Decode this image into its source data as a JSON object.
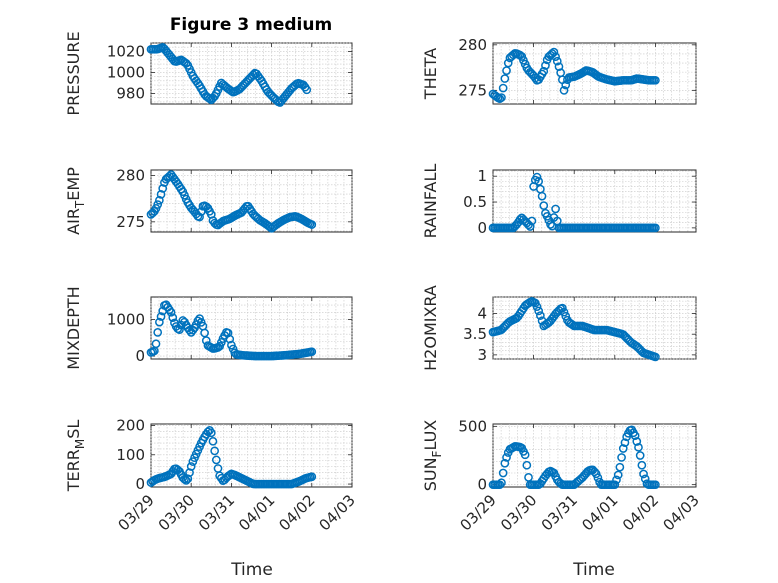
{
  "figure": {
    "title": "Figure 3 medium",
    "xlabel": "Time"
  },
  "colors": {
    "marker": "#0072bd",
    "grid": "#c8c8c8",
    "axis": "#262626"
  },
  "chart_data": [
    {
      "type": "scatter",
      "id": "pressure",
      "ylabel_main": "PRESSURE",
      "ylabel_sub": "",
      "ylabel_tail": "",
      "ylim": [
        970,
        1028
      ],
      "yticks": [
        980,
        1000,
        1020
      ],
      "yticklabels": [
        "980",
        "1000",
        "1020"
      ],
      "xlim": [
        0,
        5
      ],
      "xticklabels": [
        "03/29",
        "03/30",
        "03/31",
        "04/01",
        "04/02",
        "04/03"
      ],
      "curve": [
        [
          0.0,
          1022
        ],
        [
          0.15,
          1022
        ],
        [
          0.3,
          1024
        ],
        [
          0.45,
          1017
        ],
        [
          0.6,
          1010
        ],
        [
          0.75,
          1012
        ],
        [
          0.9,
          1008
        ],
        [
          1.05,
          996
        ],
        [
          1.2,
          988
        ],
        [
          1.35,
          978
        ],
        [
          1.5,
          974
        ],
        [
          1.6,
          978
        ],
        [
          1.75,
          990
        ],
        [
          1.9,
          985
        ],
        [
          2.05,
          981
        ],
        [
          2.2,
          984
        ],
        [
          2.35,
          990
        ],
        [
          2.5,
          996
        ],
        [
          2.6,
          1000
        ],
        [
          2.75,
          992
        ],
        [
          2.9,
          982
        ],
        [
          3.05,
          976
        ],
        [
          3.2,
          971
        ],
        [
          3.35,
          978
        ],
        [
          3.5,
          985
        ],
        [
          3.65,
          990
        ],
        [
          3.8,
          988
        ],
        [
          3.9,
          982
        ]
      ]
    },
    {
      "type": "scatter",
      "id": "theta",
      "ylabel_main": "THETA",
      "ylabel_sub": "",
      "ylabel_tail": "",
      "ylim": [
        273.5,
        280.2
      ],
      "yticks": [
        275,
        280
      ],
      "yticklabels": [
        "275",
        "280"
      ],
      "xlim": [
        0,
        5
      ],
      "xticklabels": [
        "03/29",
        "03/30",
        "03/31",
        "04/01",
        "04/02",
        "04/03"
      ],
      "curve": [
        [
          0.0,
          274.6
        ],
        [
          0.12,
          274.2
        ],
        [
          0.2,
          274.0
        ],
        [
          0.3,
          276.5
        ],
        [
          0.4,
          278.5
        ],
        [
          0.55,
          279.1
        ],
        [
          0.7,
          278.8
        ],
        [
          0.85,
          277.3
        ],
        [
          1.0,
          276.6
        ],
        [
          1.1,
          276.0
        ],
        [
          1.25,
          277.1
        ],
        [
          1.35,
          278.6
        ],
        [
          1.5,
          279.2
        ],
        [
          1.6,
          278.0
        ],
        [
          1.7,
          276.4
        ],
        [
          1.75,
          275.0
        ],
        [
          1.85,
          276.4
        ],
        [
          2.0,
          276.5
        ],
        [
          2.15,
          276.8
        ],
        [
          2.3,
          277.2
        ],
        [
          2.45,
          277.0
        ],
        [
          2.6,
          276.5
        ],
        [
          2.8,
          276.2
        ],
        [
          3.0,
          276.0
        ],
        [
          3.2,
          276.1
        ],
        [
          3.4,
          276.1
        ],
        [
          3.55,
          276.3
        ],
        [
          3.7,
          276.2
        ],
        [
          3.85,
          276.1
        ],
        [
          4.0,
          276.1
        ]
      ]
    },
    {
      "type": "scatter",
      "id": "air_temp",
      "ylabel_main": "AIR",
      "ylabel_sub": "T",
      "ylabel_tail": "EMP",
      "ylim": [
        273.9,
        280.6
      ],
      "yticks": [
        275,
        280
      ],
      "yticklabels": [
        "275",
        "280"
      ],
      "xlim": [
        0,
        5
      ],
      "xticklabels": [
        "03/29",
        "03/30",
        "03/31",
        "04/01",
        "04/02",
        "04/03"
      ],
      "curve": [
        [
          0.0,
          275.8
        ],
        [
          0.1,
          276.2
        ],
        [
          0.2,
          277.2
        ],
        [
          0.35,
          279.5
        ],
        [
          0.5,
          280.1
        ],
        [
          0.65,
          279.2
        ],
        [
          0.8,
          278.2
        ],
        [
          0.9,
          277.2
        ],
        [
          1.0,
          276.5
        ],
        [
          1.1,
          276.0
        ],
        [
          1.2,
          275.4
        ],
        [
          1.3,
          276.8
        ],
        [
          1.4,
          276.6
        ],
        [
          1.5,
          275.8
        ],
        [
          1.55,
          275.0
        ],
        [
          1.65,
          274.6
        ],
        [
          1.8,
          275.1
        ],
        [
          1.95,
          275.3
        ],
        [
          2.1,
          275.7
        ],
        [
          2.25,
          276.0
        ],
        [
          2.4,
          276.8
        ],
        [
          2.55,
          275.8
        ],
        [
          2.7,
          275.2
        ],
        [
          2.85,
          274.8
        ],
        [
          3.0,
          274.3
        ],
        [
          3.15,
          274.8
        ],
        [
          3.3,
          275.2
        ],
        [
          3.45,
          275.5
        ],
        [
          3.6,
          275.6
        ],
        [
          3.75,
          275.3
        ],
        [
          3.9,
          274.9
        ],
        [
          4.0,
          274.7
        ]
      ]
    },
    {
      "type": "scatter",
      "id": "rainfall",
      "ylabel_main": "RAINFALL",
      "ylabel_sub": "",
      "ylabel_tail": "",
      "ylim": [
        -0.08,
        1.12
      ],
      "yticks": [
        0,
        0.5,
        1
      ],
      "yticklabels": [
        "0",
        "0.5",
        "1"
      ],
      "xlim": [
        0,
        5
      ],
      "xticklabels": [
        "03/29",
        "03/30",
        "03/31",
        "04/01",
        "04/02",
        "04/03"
      ],
      "curve": [
        [
          0.0,
          0
        ],
        [
          0.3,
          0
        ],
        [
          0.5,
          0
        ],
        [
          0.6,
          0.08
        ],
        [
          0.7,
          0.2
        ],
        [
          0.85,
          0.08
        ],
        [
          0.95,
          0
        ],
        [
          1.0,
          0.8
        ],
        [
          1.05,
          0.95
        ],
        [
          1.1,
          1.0
        ],
        [
          1.15,
          0.8
        ],
        [
          1.2,
          0.65
        ],
        [
          1.28,
          0.3
        ],
        [
          1.35,
          0.2
        ],
        [
          1.45,
          0
        ],
        [
          1.55,
          0.4
        ],
        [
          1.6,
          0
        ],
        [
          2.0,
          0
        ],
        [
          2.5,
          0
        ],
        [
          3.0,
          0
        ],
        [
          3.5,
          0
        ],
        [
          4.0,
          0
        ]
      ]
    },
    {
      "type": "scatter",
      "id": "mixdepth",
      "ylabel_main": "MIXDEPTH",
      "ylabel_sub": "",
      "ylabel_tail": "",
      "ylim": [
        -80,
        1620
      ],
      "yticks": [
        0,
        1000
      ],
      "yticklabels": [
        "0",
        "1000"
      ],
      "xlim": [
        0,
        5
      ],
      "xticklabels": [
        "03/29",
        "03/30",
        "03/31",
        "04/01",
        "04/02",
        "04/03"
      ],
      "curve": [
        [
          0.0,
          100
        ],
        [
          0.1,
          150
        ],
        [
          0.2,
          900
        ],
        [
          0.35,
          1450
        ],
        [
          0.5,
          1200
        ],
        [
          0.6,
          850
        ],
        [
          0.7,
          700
        ],
        [
          0.8,
          1000
        ],
        [
          0.9,
          800
        ],
        [
          1.0,
          650
        ],
        [
          1.1,
          800
        ],
        [
          1.2,
          1050
        ],
        [
          1.3,
          800
        ],
        [
          1.4,
          300
        ],
        [
          1.55,
          200
        ],
        [
          1.7,
          250
        ],
        [
          1.8,
          500
        ],
        [
          1.9,
          700
        ],
        [
          2.0,
          300
        ],
        [
          2.1,
          50
        ],
        [
          2.3,
          20
        ],
        [
          2.6,
          0
        ],
        [
          3.0,
          0
        ],
        [
          3.3,
          20
        ],
        [
          3.5,
          40
        ],
        [
          3.7,
          60
        ],
        [
          3.9,
          100
        ],
        [
          4.0,
          120
        ]
      ]
    },
    {
      "type": "scatter",
      "id": "h2omixra",
      "ylabel_main": "H2OMIXRA",
      "ylabel_sub": "",
      "ylabel_tail": "",
      "ylim": [
        2.9,
        4.4
      ],
      "yticks": [
        3,
        3.5,
        4
      ],
      "yticklabels": [
        "3",
        "3.5",
        "4"
      ],
      "xlim": [
        0,
        5
      ],
      "xticklabels": [
        "03/29",
        "03/30",
        "03/31",
        "04/01",
        "04/02",
        "04/03"
      ],
      "curve": [
        [
          0.0,
          3.55
        ],
        [
          0.2,
          3.6
        ],
        [
          0.4,
          3.8
        ],
        [
          0.6,
          3.9
        ],
        [
          0.8,
          4.2
        ],
        [
          0.95,
          4.3
        ],
        [
          1.05,
          4.25
        ],
        [
          1.15,
          4.0
        ],
        [
          1.25,
          3.7
        ],
        [
          1.4,
          3.8
        ],
        [
          1.55,
          4.0
        ],
        [
          1.7,
          4.15
        ],
        [
          1.85,
          3.8
        ],
        [
          2.0,
          3.7
        ],
        [
          2.2,
          3.7
        ],
        [
          2.5,
          3.6
        ],
        [
          2.8,
          3.6
        ],
        [
          3.0,
          3.55
        ],
        [
          3.2,
          3.5
        ],
        [
          3.4,
          3.3
        ],
        [
          3.55,
          3.2
        ],
        [
          3.7,
          3.05
        ],
        [
          3.85,
          3.0
        ],
        [
          4.0,
          2.95
        ]
      ]
    },
    {
      "type": "scatter",
      "id": "terr_msl",
      "ylabel_main": "TERR",
      "ylabel_sub": "M",
      "ylabel_tail": "SL",
      "ylim": [
        -10,
        205
      ],
      "yticks": [
        0,
        100,
        200
      ],
      "yticklabels": [
        "0",
        "100",
        "200"
      ],
      "xlim": [
        0,
        5
      ],
      "xticklabels": [
        "03/29",
        "03/30",
        "03/31",
        "04/01",
        "04/02",
        "04/03"
      ],
      "curve": [
        [
          0.0,
          5
        ],
        [
          0.1,
          15
        ],
        [
          0.2,
          20
        ],
        [
          0.35,
          25
        ],
        [
          0.5,
          35
        ],
        [
          0.6,
          55
        ],
        [
          0.7,
          45
        ],
        [
          0.8,
          20
        ],
        [
          0.9,
          10
        ],
        [
          1.0,
          60
        ],
        [
          1.05,
          80
        ],
        [
          1.15,
          110
        ],
        [
          1.25,
          140
        ],
        [
          1.35,
          165
        ],
        [
          1.45,
          185
        ],
        [
          1.5,
          175
        ],
        [
          1.55,
          140
        ],
        [
          1.6,
          100
        ],
        [
          1.7,
          30
        ],
        [
          1.8,
          10
        ],
        [
          1.9,
          25
        ],
        [
          2.0,
          35
        ],
        [
          2.1,
          30
        ],
        [
          2.25,
          20
        ],
        [
          2.4,
          10
        ],
        [
          2.55,
          0
        ],
        [
          3.0,
          0
        ],
        [
          3.5,
          0
        ],
        [
          3.7,
          10
        ],
        [
          3.85,
          20
        ],
        [
          4.0,
          25
        ]
      ]
    },
    {
      "type": "scatter",
      "id": "sun_flux",
      "ylabel_main": "SUN",
      "ylabel_sub": "F",
      "ylabel_tail": "LUX",
      "ylim": [
        -20,
        520
      ],
      "yticks": [
        0,
        500
      ],
      "yticklabels": [
        "0",
        "500"
      ],
      "xlim": [
        0,
        5
      ],
      "xticklabels": [
        "03/29",
        "03/30",
        "03/31",
        "04/01",
        "04/02",
        "04/03"
      ],
      "curve": [
        [
          0.0,
          0
        ],
        [
          0.2,
          0
        ],
        [
          0.3,
          200
        ],
        [
          0.4,
          300
        ],
        [
          0.55,
          330
        ],
        [
          0.7,
          320
        ],
        [
          0.8,
          250
        ],
        [
          0.9,
          0
        ],
        [
          1.0,
          0
        ],
        [
          1.15,
          0
        ],
        [
          1.3,
          80
        ],
        [
          1.4,
          120
        ],
        [
          1.5,
          100
        ],
        [
          1.6,
          30
        ],
        [
          1.7,
          0
        ],
        [
          2.0,
          0
        ],
        [
          2.2,
          60
        ],
        [
          2.35,
          120
        ],
        [
          2.45,
          130
        ],
        [
          2.55,
          90
        ],
        [
          2.65,
          0
        ],
        [
          3.0,
          0
        ],
        [
          3.1,
          100
        ],
        [
          3.2,
          300
        ],
        [
          3.3,
          420
        ],
        [
          3.4,
          480
        ],
        [
          3.5,
          420
        ],
        [
          3.6,
          300
        ],
        [
          3.7,
          100
        ],
        [
          3.8,
          0
        ],
        [
          4.0,
          0
        ]
      ]
    }
  ]
}
